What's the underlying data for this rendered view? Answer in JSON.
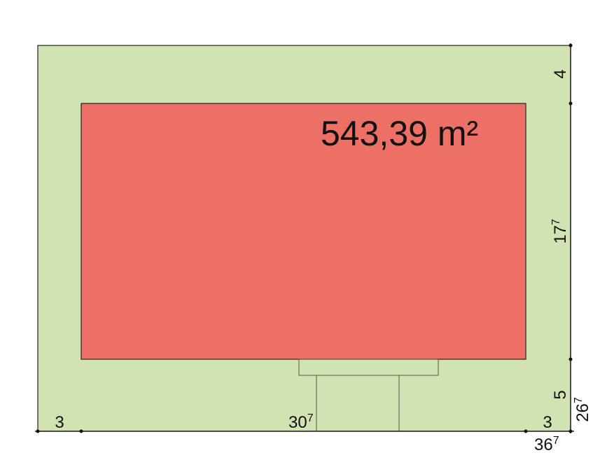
{
  "plan": {
    "area_label": "543,39 m²",
    "colors": {
      "lot": "#d0e3b0",
      "building": "#ec7065",
      "line": "#222222"
    },
    "dimensions": {
      "right_top": {
        "value": "4",
        "sup": ""
      },
      "right_middle": {
        "value": "17",
        "sup": "7"
      },
      "right_bottom": {
        "value": "5",
        "sup": ""
      },
      "right_total": {
        "value": "26",
        "sup": "7"
      },
      "bottom_left": {
        "value": "3",
        "sup": ""
      },
      "bottom_middle": {
        "value": "30",
        "sup": "7"
      },
      "bottom_right": {
        "value": "3",
        "sup": ""
      },
      "bottom_total": {
        "value": "36",
        "sup": "7"
      }
    }
  }
}
